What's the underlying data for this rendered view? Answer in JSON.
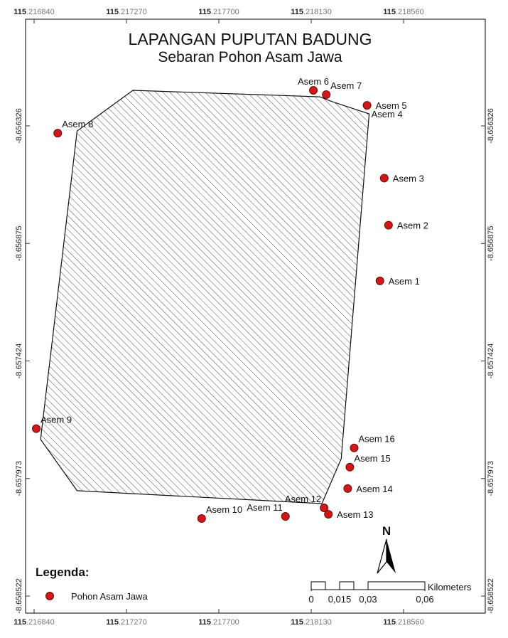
{
  "title": "LAPANGAN PUPUTAN BADUNG",
  "subtitle": "Sebaran Pohon Asam Jawa",
  "grid": {
    "x_ticks": [
      {
        "prefix": "115",
        "rest": ".216840",
        "value": 115.21684
      },
      {
        "prefix": "115",
        "rest": ".217270",
        "value": 115.21727
      },
      {
        "prefix": "115",
        "rest": ".217700",
        "value": 115.2177
      },
      {
        "prefix": "115",
        "rest": ".218130",
        "value": 115.21813
      },
      {
        "prefix": "115",
        "rest": ".218560",
        "value": 115.21856
      }
    ],
    "y_ticks": [
      {
        "label": "-8.656326",
        "value": -8.656326
      },
      {
        "label": "-8.656875",
        "value": -8.656875
      },
      {
        "label": "-8.657424",
        "value": -8.657424
      },
      {
        "label": "-8.657973",
        "value": -8.657973
      },
      {
        "label": "-8.658522",
        "value": -8.658522
      }
    ],
    "x_range": [
      115.21684,
      115.21856
    ],
    "y_range": [
      -8.656326,
      -8.658522
    ]
  },
  "area": {
    "name": "Lapangan Puputan Badung",
    "fill_pattern": "diagonal-hatch",
    "vertices": [
      {
        "lon": 115.2173,
        "lat": -8.65616
      },
      {
        "lon": 115.21817,
        "lat": -8.65619
      },
      {
        "lon": 115.21822,
        "lat": -8.65621
      },
      {
        "lon": 115.2184,
        "lat": -8.65627
      },
      {
        "lon": 115.21827,
        "lat": -8.65788
      },
      {
        "lon": 115.21818,
        "lat": -8.65809
      },
      {
        "lon": 115.21704,
        "lat": -8.65803
      },
      {
        "lon": 115.21687,
        "lat": -8.65779
      },
      {
        "lon": 115.21704,
        "lat": -8.65635
      }
    ]
  },
  "trees": [
    {
      "name": "Asem 1",
      "lon": 115.21845,
      "lat": -8.65705,
      "label_side": "right"
    },
    {
      "name": "Asem 2",
      "lon": 115.21849,
      "lat": -8.65679,
      "label_side": "right"
    },
    {
      "name": "Asem 3",
      "lon": 115.21847,
      "lat": -8.65657,
      "label_side": "right"
    },
    {
      "name": "Asem 4",
      "lon": 115.21839,
      "lat": -8.65623,
      "label_side": "below-right"
    },
    {
      "name": "Asem 5",
      "lon": 115.21839,
      "lat": -8.65623,
      "label_side": "right"
    },
    {
      "name": "Asem 6",
      "lon": 115.21814,
      "lat": -8.65616,
      "label_side": "above"
    },
    {
      "name": "Asem 7",
      "lon": 115.2182,
      "lat": -8.65618,
      "label_side": "above-right"
    },
    {
      "name": "Asem 8",
      "lon": 115.21695,
      "lat": -8.65636,
      "label_side": "above-right"
    },
    {
      "name": "Asem 9",
      "lon": 115.21685,
      "lat": -8.65774,
      "label_side": "above-right"
    },
    {
      "name": "Asem 10",
      "lon": 115.21762,
      "lat": -8.65816,
      "label_side": "above-right"
    },
    {
      "name": "Asem 11",
      "lon": 115.21801,
      "lat": -8.65815,
      "label_side": "above-left"
    },
    {
      "name": "Asem 12",
      "lon": 115.21819,
      "lat": -8.65811,
      "label_side": "above-left"
    },
    {
      "name": "Asem 13",
      "lon": 115.21821,
      "lat": -8.65814,
      "label_side": "right"
    },
    {
      "name": "Asem 14",
      "lon": 115.2183,
      "lat": -8.65802,
      "label_side": "right"
    },
    {
      "name": "Asem 15",
      "lon": 115.21831,
      "lat": -8.65792,
      "label_side": "above-right"
    },
    {
      "name": "Asem 16",
      "lon": 115.21833,
      "lat": -8.65783,
      "label_side": "above-right"
    }
  ],
  "north_arrow": {
    "label": "N"
  },
  "legend": {
    "title": "Legenda:",
    "items": [
      {
        "label": "Pohon Asam Jawa",
        "symbol": "red-dot-icon",
        "color": "#d01818"
      }
    ]
  },
  "scale_bar": {
    "unit": "Kilometers",
    "labels": [
      "0",
      "0,015",
      "0,03",
      "0,06"
    ]
  },
  "colors": {
    "point_fill": "#d01818",
    "point_stroke": "#6a0b0b",
    "frame": "#000000",
    "tick_color": "#333333"
  }
}
